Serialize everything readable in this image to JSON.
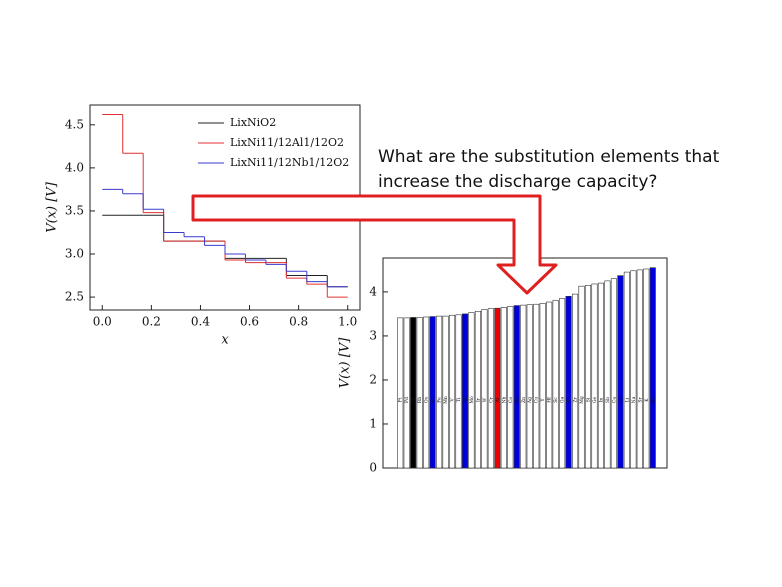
{
  "chart_data": [
    {
      "type": "line",
      "step": "post",
      "xlabel": "x",
      "ylabel": "V(x) [V]",
      "x": [
        0,
        0.0833,
        0.1667,
        0.25,
        0.3333,
        0.4167,
        0.5,
        0.5833,
        0.6667,
        0.75,
        0.8333,
        0.9167,
        1.0
      ],
      "xlim": [
        -0.05,
        1.05
      ],
      "xticks": [
        {
          "value": 0,
          "label": "0.0"
        },
        0.2,
        0.4,
        0.6,
        0.8,
        {
          "value": 1,
          "label": "1.0"
        }
      ],
      "ylim": [
        2.35,
        4.73
      ],
      "yticks": [
        2.5,
        {
          "value": 3,
          "label": "3.0"
        },
        3.5,
        {
          "value": 4,
          "label": "4.0"
        },
        4.5
      ],
      "legend": "upper right",
      "series": [
        {
          "name": "LixNiO2",
          "color": "#222222",
          "values": [
            3.45,
            3.45,
            3.45,
            3.15,
            3.15,
            3.15,
            2.95,
            2.95,
            2.95,
            2.75,
            2.75,
            2.62,
            2.62
          ]
        },
        {
          "name": "LixNi11/12Al1/12O2",
          "color": "#e03030",
          "values": [
            4.62,
            4.17,
            3.48,
            3.15,
            3.15,
            3.15,
            2.93,
            2.9,
            2.9,
            2.72,
            2.65,
            2.5,
            2.5
          ]
        },
        {
          "name": "LixNi11/12Nb1/12O2",
          "color": "#3a3ad0",
          "values": [
            3.75,
            3.7,
            3.52,
            3.25,
            3.2,
            3.1,
            3.0,
            2.93,
            2.88,
            2.8,
            2.68,
            2.62,
            2.62
          ]
        }
      ]
    },
    {
      "type": "bar",
      "ylabel": "V(x) [V]",
      "categories": [
        "Pt",
        "Pd",
        "Ni",
        "Rh",
        "Os",
        "Au",
        "Fe",
        "Mn",
        "V",
        "Ti",
        "Ta",
        "Mo",
        "Ir",
        "W",
        "Cr",
        "Al",
        "Nb",
        "Co",
        "Re",
        "Zn",
        "Ag",
        "Cu",
        "Y",
        "Hf",
        "Sc",
        "Ga",
        "Sn",
        "Zr",
        "Mg",
        "Si",
        "Ge",
        "In",
        "Sb",
        "Ca",
        "Cd",
        "Li",
        "Na",
        "Sr",
        "K",
        "Ba"
      ],
      "values": [
        3.41,
        3.41,
        3.42,
        3.42,
        3.43,
        3.44,
        3.45,
        3.45,
        3.47,
        3.48,
        3.5,
        3.53,
        3.56,
        3.6,
        3.62,
        3.63,
        3.65,
        3.67,
        3.69,
        3.7,
        3.71,
        3.72,
        3.74,
        3.77,
        3.81,
        3.85,
        3.9,
        3.95,
        4.13,
        4.15,
        4.18,
        4.2,
        4.25,
        4.3,
        4.37,
        4.45,
        4.48,
        4.5,
        4.52,
        4.55
      ],
      "colors": [
        "#ffffff",
        "#ffffff",
        "#000000",
        "#ffffff",
        "#ffffff",
        "#0000dd",
        "#ffffff",
        "#ffffff",
        "#ffffff",
        "#ffffff",
        "#0000dd",
        "#ffffff",
        "#ffffff",
        "#ffffff",
        "#ffffff",
        "#ee0000",
        "#ffffff",
        "#ffffff",
        "#0000dd",
        "#ffffff",
        "#ffffff",
        "#ffffff",
        "#ffffff",
        "#ffffff",
        "#ffffff",
        "#ffffff",
        "#0000dd",
        "#ffffff",
        "#ffffff",
        "#ffffff",
        "#ffffff",
        "#ffffff",
        "#ffffff",
        "#ffffff",
        "#0000dd",
        "#ffffff",
        "#ffffff",
        "#ffffff",
        "#ffffff",
        "#0000dd"
      ],
      "ylim": [
        0,
        4.77
      ],
      "yticks": [
        0,
        1,
        2,
        3,
        4
      ]
    }
  ],
  "annotation": {
    "lines": [
      "What are the substitution elements that",
      "increase the discharge capacity?"
    ]
  }
}
